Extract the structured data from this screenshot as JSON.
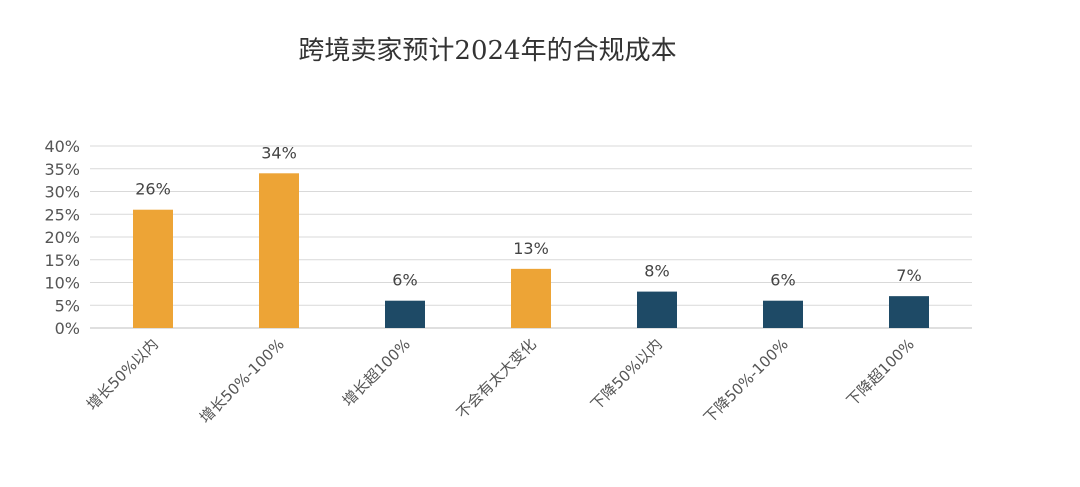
{
  "chart_data": {
    "type": "bar",
    "title": "跨境卖家预计2024年的合规成本",
    "categories": [
      "增长50%以内",
      "增长50%-100%",
      "增长超100%",
      "不会有太大变化",
      "下降50%以内",
      "下降50%-100%",
      "下降超100%"
    ],
    "values": [
      26,
      34,
      6,
      13,
      8,
      6,
      7
    ],
    "data_labels": [
      "26%",
      "34%",
      "6%",
      "13%",
      "8%",
      "6%",
      "7%"
    ],
    "bar_colors": [
      "#EDA436",
      "#EDA436",
      "#1E4A66",
      "#EDA436",
      "#1E4A66",
      "#1E4A66",
      "#1E4A66"
    ],
    "ylim": [
      0,
      40
    ],
    "yticks": [
      0,
      5,
      10,
      15,
      20,
      25,
      30,
      35,
      40
    ],
    "ytick_labels": [
      "0%",
      "5%",
      "10%",
      "15%",
      "20%",
      "25%",
      "30%",
      "35%",
      "40%"
    ],
    "xlabel": "",
    "ylabel": "",
    "grid": true,
    "legend": "none"
  }
}
